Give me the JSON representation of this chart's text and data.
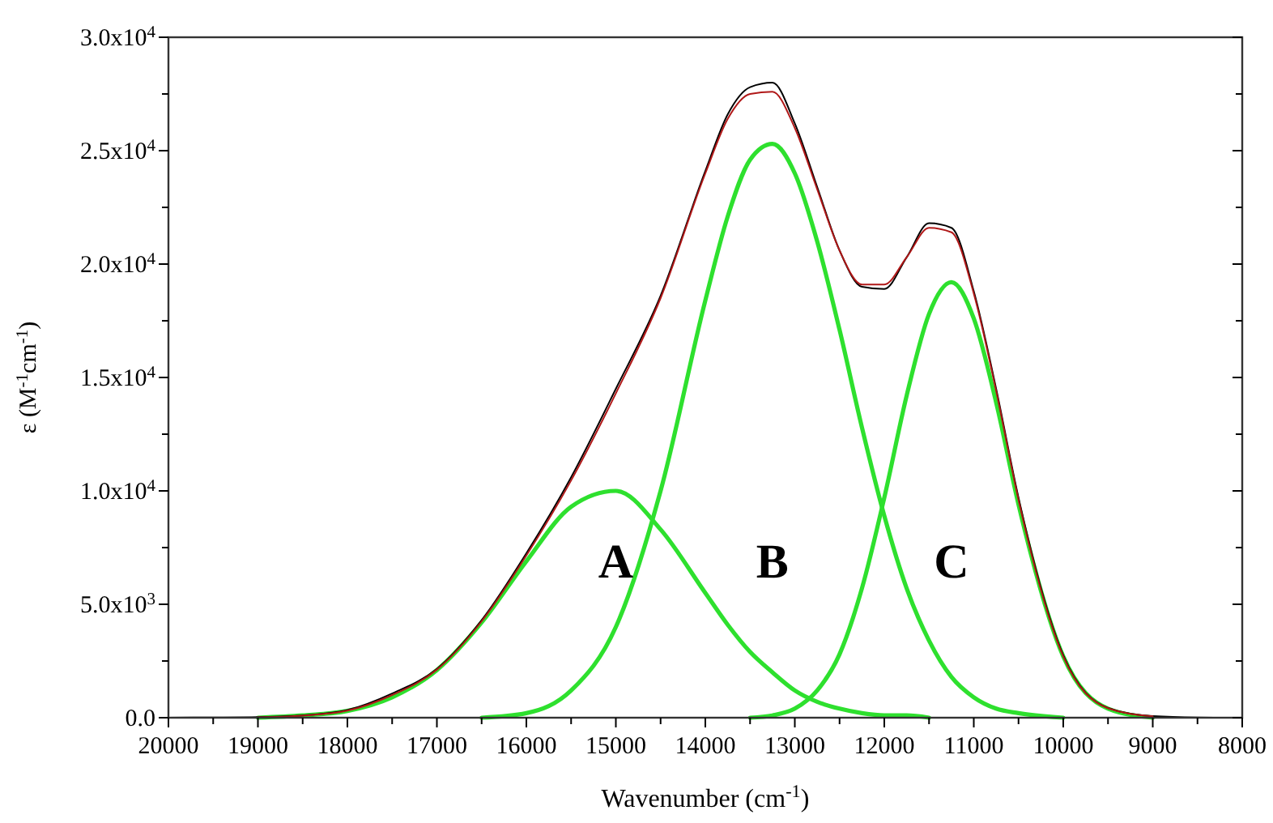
{
  "chart_data": {
    "type": "line",
    "xlabel": "Wavenumber (cm$^{-1}$)",
    "ylabel": "ε (M$^{-1}$cm$^{-1}$)",
    "x": [
      20000,
      19500,
      19000,
      18500,
      18000,
      17500,
      17000,
      16500,
      16000,
      15500,
      15000,
      14500,
      14000,
      13750,
      13500,
      13250,
      13000,
      12750,
      12500,
      12250,
      12000,
      11750,
      11500,
      11250,
      11000,
      10750,
      10500,
      10000,
      9500,
      9000,
      8500,
      8000
    ],
    "xlim": [
      20000,
      8000
    ],
    "xticks": [
      20000,
      {
        "value": 19500,
        "label": null
      },
      19000,
      {
        "value": 18500,
        "label": null
      },
      18000,
      {
        "value": 17500,
        "label": null
      },
      17000,
      {
        "value": 16500,
        "label": null
      },
      16000,
      {
        "value": 15500,
        "label": null
      },
      15000,
      {
        "value": 14500,
        "label": null
      },
      14000,
      {
        "value": 13500,
        "label": null
      },
      13000,
      {
        "value": 12500,
        "label": null
      },
      12000,
      {
        "value": 11500,
        "label": null
      },
      11000,
      {
        "value": 10500,
        "label": null
      },
      10000,
      {
        "value": 9500,
        "label": null
      },
      9000,
      {
        "value": 8500,
        "label": null
      },
      8000
    ],
    "ylim": [
      0,
      30000
    ],
    "yticks": [
      {
        "value": 0,
        "label": "0.0"
      },
      {
        "value": 2500,
        "label": null
      },
      {
        "value": 5000,
        "label": "5.0x10$^{3}$"
      },
      {
        "value": 7500,
        "label": null
      },
      {
        "value": 10000,
        "label": "1.0x10$^{4}$"
      },
      {
        "value": 12500,
        "label": null
      },
      {
        "value": 15000,
        "label": "1.5x10$^{4}$"
      },
      {
        "value": 17500,
        "label": null
      },
      {
        "value": 20000,
        "label": "2.0x10$^{4}$"
      },
      {
        "value": 22500,
        "label": null
      },
      {
        "value": 25000,
        "label": "2.5x10$^{4}$"
      },
      {
        "value": 27500,
        "label": null
      },
      {
        "value": 30000,
        "label": "3.0x10$^{4}$"
      }
    ],
    "series": [
      {
        "color": "#000000",
        "values": [
          0,
          10,
          30,
          100,
          340,
          1070,
          2150,
          4300,
          7250,
          10600,
          14500,
          18600,
          24100,
          26600,
          27800,
          28000,
          26200,
          23400,
          20600,
          19000,
          18900,
          20300,
          21800,
          21600,
          18800,
          14500,
          9700,
          2750,
          430,
          70,
          10,
          0
        ]
      },
      {
        "color": "#b01818",
        "values": [
          null,
          null,
          20,
          90,
          310,
          1000,
          2120,
          4250,
          7150,
          10460,
          14300,
          18500,
          24000,
          26400,
          27500,
          27600,
          26000,
          23300,
          20600,
          19100,
          19100,
          20300,
          21600,
          21400,
          18700,
          14400,
          9600,
          2700,
          420,
          60,
          null,
          null
        ]
      },
      {
        "color": "#2ee02e",
        "values": [
          null,
          null,
          0,
          100,
          300,
          900,
          2100,
          4200,
          6900,
          9300,
          10000,
          8300,
          5500,
          4100,
          2900,
          2000,
          1200,
          700,
          400,
          200,
          100,
          100,
          0,
          null,
          null,
          null,
          null,
          null,
          null,
          null,
          null,
          null
        ]
      },
      {
        "color": "#2ee02e",
        "values": [
          null,
          null,
          null,
          null,
          null,
          null,
          null,
          0,
          200,
          1200,
          4000,
          10000,
          18400,
          22100,
          24600,
          25300,
          24000,
          21000,
          17100,
          12800,
          8900,
          5700,
          3400,
          1800,
          900,
          400,
          200,
          0,
          null,
          null,
          null,
          null
        ]
      },
      {
        "color": "#2ee02e",
        "values": [
          null,
          null,
          null,
          null,
          null,
          null,
          null,
          null,
          null,
          null,
          null,
          null,
          null,
          null,
          0,
          100,
          400,
          1200,
          2800,
          5700,
          9700,
          14200,
          17800,
          19200,
          17600,
          13900,
          9400,
          2700,
          400,
          0,
          null,
          null
        ]
      }
    ],
    "annotations": [
      "A",
      "B",
      "C"
    ]
  }
}
